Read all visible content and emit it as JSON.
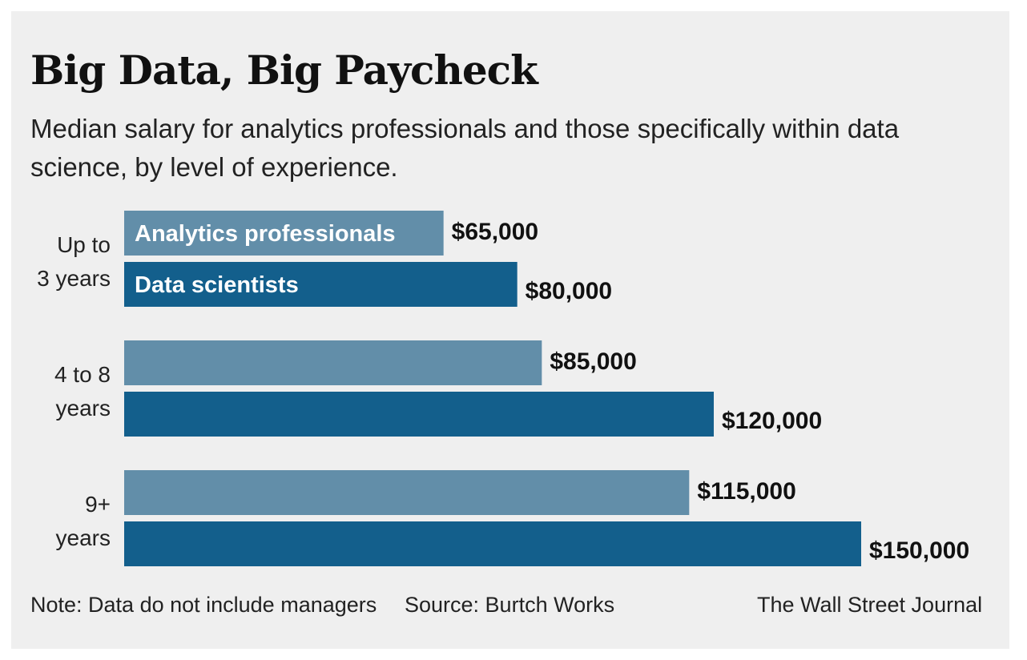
{
  "header": {
    "title": "Big Data, Big Paycheck",
    "subtitle": "Median salary for analytics professionals and those specifically within data science, by level of experience."
  },
  "chart_data": {
    "type": "bar",
    "orientation": "horizontal",
    "categories": [
      [
        "Up to",
        "3 years"
      ],
      [
        "4 to 8",
        "years"
      ],
      [
        "9+",
        "years"
      ]
    ],
    "series": [
      {
        "name": "Analytics professionals",
        "color": "#628ea9",
        "values": [
          65000,
          85000,
          115000
        ],
        "labels": [
          "$65,000",
          "$85,000",
          "$115,000"
        ]
      },
      {
        "name": "Data scientists",
        "color": "#135f8c",
        "values": [
          80000,
          120000,
          150000
        ],
        "labels": [
          "$80,000",
          "$120,000",
          "$150,000"
        ]
      }
    ],
    "xlim": [
      0,
      150000
    ],
    "grid": false,
    "legend": "inside-first-bars"
  },
  "footer": {
    "note": "Note: Data do not include managers",
    "source": "Source: Burtch Works",
    "credit": "The Wall Street Journal"
  }
}
